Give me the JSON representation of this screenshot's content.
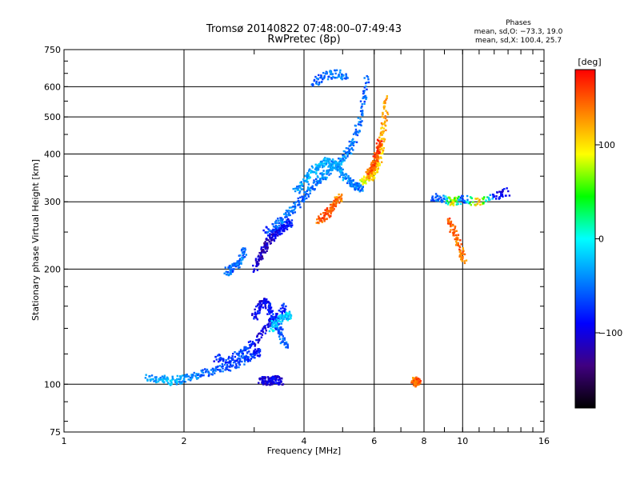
{
  "chart_data": {
    "type": "scatter",
    "title": "Tromsø 20140822 07:48:00–07:49:43",
    "subtitle": "RwPretec (8p)",
    "xlabel": "Frequency [MHz]",
    "ylabel": "Stationary phase Virtual Height [km]",
    "x_scale": "log",
    "y_scale": "log",
    "xlim": [
      1,
      16
    ],
    "ylim": [
      75,
      750
    ],
    "x_ticks": [
      1,
      2,
      4,
      6,
      8,
      10,
      16
    ],
    "x_tick_labels": [
      "1",
      "2",
      "4",
      "6",
      "8",
      "10",
      "16"
    ],
    "y_ticks": [
      75,
      100,
      200,
      300,
      400,
      500,
      600,
      750
    ],
    "y_tick_labels": [
      "75",
      "100",
      "200",
      "300",
      "400",
      "500",
      "600",
      "750"
    ],
    "grid": true,
    "phases_header": "Phases",
    "phases_stats": [
      "mean, sd,O: −73.3, 19.0",
      "mean, sd,X: 100.4, 25.7"
    ],
    "colorbar": {
      "label": "[deg]",
      "range": [
        -180,
        180
      ],
      "ticks": [
        100,
        0,
        -100
      ],
      "tick_labels": [
        "100",
        "0",
        "−100"
      ],
      "colors": [
        "#ff0000",
        "#ff8000",
        "#ffff00",
        "#00ff00",
        "#00ffff",
        "#0080ff",
        "#0000ff",
        "#400080",
        "#000000"
      ]
    },
    "traces": [
      {
        "x": [
          1.6,
          1.75,
          1.85,
          1.95,
          2.1,
          2.3,
          2.5,
          2.7,
          2.85,
          3.0,
          3.1
        ],
        "y": [
          104,
          103,
          102,
          103,
          105,
          108,
          110,
          113,
          117,
          120,
          122
        ],
        "phase": [
          -40,
          -30,
          -25,
          -35,
          -45,
          -55,
          -60,
          -65,
          -70,
          -75,
          -80
        ]
      },
      {
        "x": [
          2.4,
          2.6,
          2.8,
          3.0,
          3.2,
          3.4,
          3.6
        ],
        "y": [
          118,
          115,
          122,
          128,
          140,
          150,
          160
        ],
        "phase": [
          -80,
          -70,
          -60,
          -90,
          -100,
          -85,
          -75
        ]
      },
      {
        "x": [
          3.0,
          3.1,
          3.2,
          3.3,
          3.4,
          3.5,
          3.6
        ],
        "y": [
          150,
          160,
          165,
          155,
          145,
          135,
          125
        ],
        "phase": [
          -90,
          -95,
          -100,
          -80,
          -70,
          -60,
          -50
        ]
      },
      {
        "x": [
          3.3,
          3.45,
          3.6,
          3.7
        ],
        "y": [
          140,
          147,
          152,
          150
        ],
        "phase": [
          -10,
          -20,
          -25,
          -15
        ]
      },
      {
        "x": [
          3.1,
          3.2,
          3.3,
          3.4,
          3.5
        ],
        "y": [
          103,
          102,
          102,
          103,
          102
        ],
        "phase": [
          -100,
          -110,
          -105,
          -95,
          -100
        ]
      },
      {
        "x": [
          2.55,
          2.65,
          2.75,
          2.85
        ],
        "y": [
          197,
          200,
          210,
          225
        ],
        "phase": [
          -50,
          -60,
          -55,
          -45
        ]
      },
      {
        "x": [
          3.0,
          3.1,
          3.2,
          3.3,
          3.4,
          3.5,
          3.6,
          3.7
        ],
        "y": [
          200,
          215,
          230,
          240,
          250,
          255,
          260,
          265
        ],
        "phase": [
          -100,
          -110,
          -120,
          -105,
          -95,
          -90,
          -85,
          -80
        ]
      },
      {
        "x": [
          3.2,
          3.4,
          3.6,
          3.8,
          4.0,
          4.2,
          4.4,
          4.6,
          4.8,
          5.0,
          5.2,
          5.4,
          5.6,
          5.75
        ],
        "y": [
          250,
          260,
          275,
          290,
          310,
          330,
          345,
          360,
          375,
          390,
          410,
          450,
          520,
          640
        ],
        "phase": [
          -70,
          -60,
          -50,
          -55,
          -60,
          -50,
          -45,
          -40,
          -35,
          -40,
          -45,
          -50,
          -55,
          -60
        ]
      },
      {
        "x": [
          3.8,
          4.0,
          4.2,
          4.4,
          4.6,
          4.8,
          5.0,
          5.2,
          5.4,
          5.6
        ],
        "y": [
          320,
          340,
          360,
          375,
          385,
          375,
          355,
          340,
          330,
          325
        ],
        "phase": [
          -40,
          -35,
          -30,
          -25,
          -30,
          -35,
          -40,
          -45,
          -50,
          -55
        ]
      },
      {
        "x": [
          4.35,
          4.5,
          4.65,
          4.8,
          4.95
        ],
        "y": [
          265,
          275,
          285,
          300,
          310
        ],
        "phase": [
          140,
          150,
          145,
          140,
          135
        ]
      },
      {
        "x": [
          5.6,
          5.8,
          6.0,
          6.15,
          6.25,
          6.35,
          6.45
        ],
        "y": [
          340,
          345,
          355,
          380,
          420,
          480,
          560
        ],
        "phase": [
          90,
          95,
          100,
          105,
          110,
          120,
          125
        ]
      },
      {
        "x": [
          5.8,
          5.9,
          6.0,
          6.1,
          6.2
        ],
        "y": [
          350,
          365,
          380,
          400,
          430
        ],
        "phase": [
          140,
          145,
          150,
          155,
          160
        ]
      },
      {
        "x": [
          4.2,
          4.5,
          4.8,
          5.1
        ],
        "y": [
          610,
          640,
          650,
          640
        ],
        "phase": [
          -60,
          -55,
          -50,
          -45
        ]
      },
      {
        "x": [
          7.5,
          7.6,
          7.7,
          7.75
        ],
        "y": [
          101,
          102,
          101,
          103
        ],
        "phase": [
          150,
          140,
          145,
          155
        ]
      },
      {
        "x": [
          9.2,
          9.5,
          9.8,
          10.1
        ],
        "y": [
          270,
          250,
          230,
          210
        ],
        "phase": [
          150,
          140,
          145,
          130
        ]
      },
      {
        "x": [
          8.4,
          9.0,
          9.5,
          10.0,
          11.0,
          12.0,
          13.0
        ],
        "y": [
          310,
          305,
          300,
          305,
          300,
          310,
          320
        ],
        "phase": [
          -60,
          -50,
          120,
          -80,
          130,
          -90,
          -100
        ]
      }
    ]
  }
}
